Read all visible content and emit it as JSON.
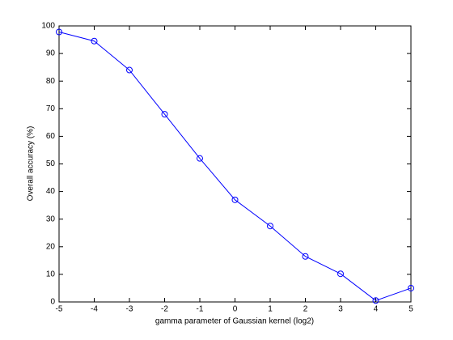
{
  "chart_data": {
    "type": "line",
    "x_label": "gamma parameter of Gaussian kernel (log2)",
    "y_label": "Overall accuracy (%)",
    "x": [
      -5,
      -4,
      -3,
      -2,
      -1,
      0,
      1,
      2,
      3,
      4,
      5
    ],
    "series": [
      {
        "color": "#0000ff",
        "values": [
          97.8,
          94.5,
          84,
          68,
          52,
          37,
          27.5,
          16.5,
          10.2,
          0.5,
          5
        ]
      }
    ],
    "xlim": [
      -5,
      5
    ],
    "xticks": [
      -5,
      -4,
      -3,
      -2,
      -1,
      0,
      1,
      2,
      3,
      4,
      5
    ],
    "ylim": [
      0,
      100
    ],
    "yticks": [
      0,
      10,
      20,
      30,
      40,
      50,
      60,
      70,
      80,
      90,
      100
    ],
    "marker": "circle",
    "grid": false
  }
}
